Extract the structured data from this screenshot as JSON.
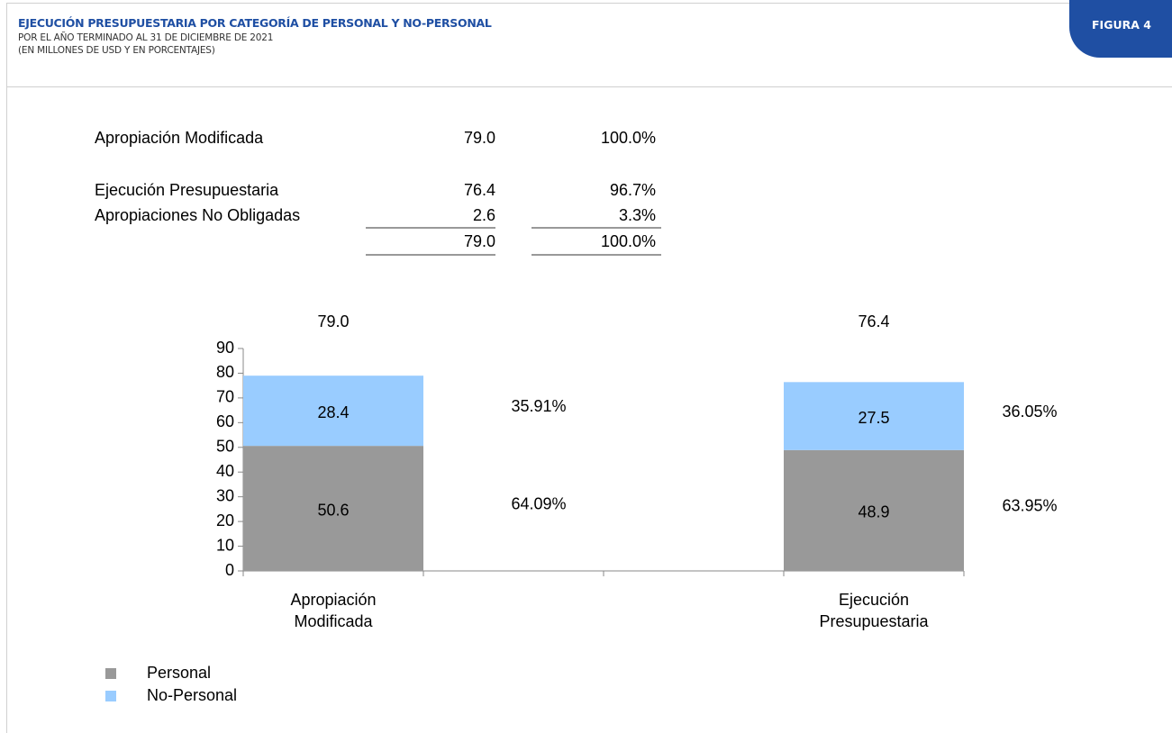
{
  "header": {
    "title": "EJECUCIÓN PRESUPUESTARIA POR CATEGORÍA DE PERSONAL Y NO-PERSONAL",
    "subtitle": "POR EL AÑO TERMINADO AL 31 DE DICIEMBRE DE 2021",
    "units": "(EN MILLONES DE USD Y EN PORCENTAJES)",
    "badge": "FIGURA 4"
  },
  "summary": {
    "rows": [
      [
        "Apropiación Modificada",
        "79.0",
        "100.0%"
      ],
      [
        "Ejecución Presupuestaria",
        "76.4",
        "96.7%"
      ],
      [
        "Apropiaciones No Obligadas",
        "2.6",
        "3.3%"
      ]
    ],
    "total": [
      "79.0",
      "100.0%"
    ]
  },
  "chart_data": {
    "type": "stacked_bar",
    "categories": [
      "Apropiación Modificada",
      null,
      null,
      "Ejecución Presupuestaria"
    ],
    "series": [
      {
        "name": "Personal",
        "color": "#999999",
        "values": [
          50.6,
          null,
          null,
          48.9
        ],
        "shares": [
          64.09,
          null,
          null,
          63.95
        ],
        "share_labels": [
          "64.09%",
          null,
          null,
          "63.95%"
        ]
      },
      {
        "name": "No-Personal",
        "color": "#99ccff",
        "values": [
          28.4,
          null,
          null,
          27.5
        ],
        "shares": [
          35.91,
          null,
          null,
          36.05
        ],
        "share_labels": [
          "35.91%",
          null,
          null,
          "36.05%"
        ]
      }
    ],
    "totals": [
      79.0,
      null,
      null,
      76.4
    ],
    "total_labels": [
      "79.0",
      null,
      null,
      "76.4"
    ],
    "ylim": [
      0,
      90
    ],
    "yticks": [
      0,
      10,
      20,
      30,
      40,
      50,
      60,
      70,
      80,
      90
    ]
  }
}
